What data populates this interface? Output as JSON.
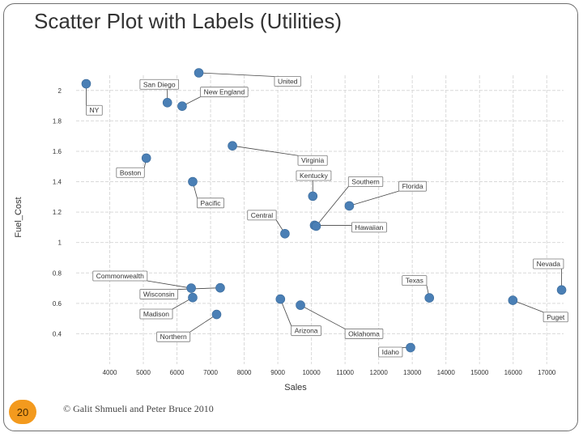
{
  "slide": {
    "title": "Scatter Plot with Labels (Utilities)",
    "page_number": "20",
    "copyright": "© Galit Shmueli and Peter Bruce 2010"
  },
  "colors": {
    "point": "#4a7fb5",
    "grid": "#d9d9d9",
    "badge": "#f39a1e",
    "frame": "#6f6f6f"
  },
  "chart_data": {
    "type": "scatter",
    "xlabel": "Sales",
    "ylabel": "Fuel_Cost",
    "xlim": [
      3000,
      17500
    ],
    "ylim": [
      0.2,
      2.1
    ],
    "x_ticks": [
      4000,
      5000,
      6000,
      7000,
      8000,
      9000,
      10000,
      11000,
      12000,
      13000,
      14000,
      15000,
      16000,
      17000
    ],
    "y_ticks": [
      0.4,
      0.6,
      0.8,
      1,
      1.2,
      1.4,
      1.6,
      1.8,
      2
    ],
    "y_tick_labels": [
      "0.4",
      "0.6",
      "0.8",
      "1",
      "1.2",
      "1.4",
      "1.6",
      "1.8",
      "2"
    ],
    "grid": true,
    "points": [
      {
        "label": "Arizona",
        "x": 9077,
        "y": 0.628,
        "lx": 9400,
        "ly": 0.42
      },
      {
        "label": "Boston",
        "x": 5088,
        "y": 1.555,
        "lx": 4200,
        "ly": 1.46
      },
      {
        "label": "Central",
        "x": 9212,
        "y": 1.058,
        "lx": 8100,
        "ly": 1.18
      },
      {
        "label": "Commonwealth",
        "x": 6423,
        "y": 0.7,
        "lx": 3500,
        "ly": 0.78
      },
      {
        "label": "NY",
        "x": 3300,
        "y": 2.044,
        "lx": 3300,
        "ly": 1.87
      },
      {
        "label": "Florida",
        "x": 11127,
        "y": 1.241,
        "lx": 12600,
        "ly": 1.37
      },
      {
        "label": "Hawaiian",
        "x": 10093,
        "y": 1.113,
        "lx": 11200,
        "ly": 1.1
      },
      {
        "label": "Idaho",
        "x": 12948,
        "y": 0.309,
        "lx": 12000,
        "ly": 0.28
      },
      {
        "label": "Kentucky",
        "x": 10040,
        "y": 1.305,
        "lx": 9550,
        "ly": 1.44
      },
      {
        "label": "Madison",
        "x": 6468,
        "y": 0.638,
        "lx": 4900,
        "ly": 0.53
      },
      {
        "label": "Nevada",
        "x": 17441,
        "y": 0.688,
        "lx": 16600,
        "ly": 0.86
      },
      {
        "label": "New England",
        "x": 6154,
        "y": 1.897,
        "lx": 6700,
        "ly": 1.99
      },
      {
        "label": "Northern",
        "x": 7179,
        "y": 0.527,
        "lx": 5400,
        "ly": 0.38
      },
      {
        "label": "Oklahoma",
        "x": 9673,
        "y": 0.588,
        "lx": 11000,
        "ly": 0.4
      },
      {
        "label": "Pacific",
        "x": 6468,
        "y": 1.4,
        "lx": 6600,
        "ly": 1.26
      },
      {
        "label": "Puget",
        "x": 15991,
        "y": 0.62,
        "lx": 16900,
        "ly": 0.51
      },
      {
        "label": "San Diego",
        "x": 5714,
        "y": 1.92,
        "lx": 4900,
        "ly": 2.04
      },
      {
        "label": "Southern",
        "x": 10140,
        "y": 1.108,
        "lx": 11100,
        "ly": 1.4
      },
      {
        "label": "Texas",
        "x": 13507,
        "y": 0.636,
        "lx": 12700,
        "ly": 0.75
      },
      {
        "label": "Wisconsin",
        "x": 7287,
        "y": 0.702,
        "lx": 4900,
        "ly": 0.66
      },
      {
        "label": "United",
        "x": 6650,
        "y": 2.116,
        "lx": 8900,
        "ly": 2.06
      },
      {
        "label": "Virginia",
        "x": 7650,
        "y": 1.636,
        "lx": 9600,
        "ly": 1.54
      }
    ]
  }
}
